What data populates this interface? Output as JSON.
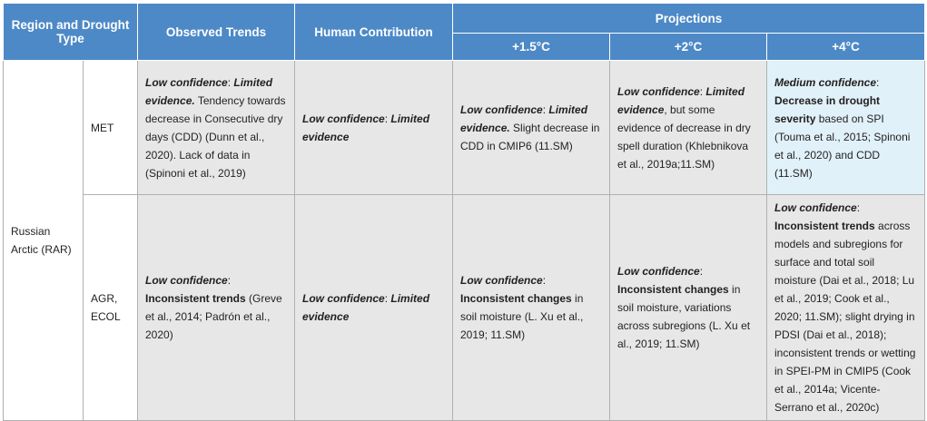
{
  "header": {
    "region": "Region and Drought Type",
    "observed": "Observed Trends",
    "human": "Human Contribution",
    "projections": "Projections",
    "levels": [
      "+1.5°C",
      "+2°C",
      "+4°C"
    ]
  },
  "region": "Russian Arctic (RAR)",
  "rows": [
    {
      "type": "MET",
      "cells": [
        [
          {
            "t": "Low confidence",
            "f": "bi"
          },
          {
            "t": ": ",
            "f": "n"
          },
          {
            "t": "Limited evidence.",
            "f": "bi"
          },
          {
            "t": " Tendency towards decrease in Consecutive dry days (CDD) (Dunn et al., 2020). Lack of data in (Spinoni et al., 2019)",
            "f": "n"
          }
        ],
        [
          {
            "t": "Low confidence",
            "f": "bi"
          },
          {
            "t": ": ",
            "f": "n"
          },
          {
            "t": "Limited evidence",
            "f": "bi"
          }
        ],
        [
          {
            "t": "Low confidence",
            "f": "bi"
          },
          {
            "t": ": ",
            "f": "n"
          },
          {
            "t": "Limited evidence.",
            "f": "bi"
          },
          {
            "t": " Slight decrease in CDD in CMIP6 (11.SM)",
            "f": "n"
          }
        ],
        [
          {
            "t": "Low confidence",
            "f": "bi"
          },
          {
            "t": ": ",
            "f": "n"
          },
          {
            "t": "Limited evidence",
            "f": "bi"
          },
          {
            "t": ", but some evidence of decrease in dry spell duration (Khlebnikova et al., 2019a;11.SM)",
            "f": "n"
          }
        ],
        [
          {
            "t": "Medium confidence",
            "f": "bi"
          },
          {
            "t": ": ",
            "f": "n"
          },
          {
            "t": "Decrease in drought severity",
            "f": "b"
          },
          {
            "t": " based on SPI (Touma et al., 2015; Spinoni et al., 2020) and CDD (11.SM)",
            "f": "n"
          }
        ]
      ]
    },
    {
      "type": "AGR, ECOL",
      "cells": [
        [
          {
            "t": "Low confidence",
            "f": "bi"
          },
          {
            "t": ": ",
            "f": "n"
          },
          {
            "t": "Inconsistent trends",
            "f": "b"
          },
          {
            "t": " (Greve et al., 2014; Padrón et al., 2020)",
            "f": "n"
          }
        ],
        [
          {
            "t": "Low confidence",
            "f": "bi"
          },
          {
            "t": ": ",
            "f": "n"
          },
          {
            "t": "Limited evidence",
            "f": "bi"
          }
        ],
        [
          {
            "t": "Low confidence",
            "f": "bi"
          },
          {
            "t": ": ",
            "f": "n"
          },
          {
            "t": "Inconsistent changes",
            "f": "b"
          },
          {
            "t": " in soil moisture (L. Xu et al., 2019; 11.SM)",
            "f": "n"
          }
        ],
        [
          {
            "t": "Low confidence",
            "f": "bi"
          },
          {
            "t": ": ",
            "f": "n"
          },
          {
            "t": "Inconsistent changes",
            "f": "b"
          },
          {
            "t": " in soil moisture, variations across subregions (L. Xu et al., 2019; 11.SM)",
            "f": "n"
          }
        ],
        [
          {
            "t": "Low confidence",
            "f": "bi"
          },
          {
            "t": ": ",
            "f": "n"
          },
          {
            "t": "Inconsistent trends",
            "f": "b"
          },
          {
            "t": " across models and subregions for surface and total soil moisture (Dai et al., 2018; Lu et al., 2019; Cook et al., 2020; 11.SM); slight drying in PDSI (Dai et al., 2018); inconsistent trends or wetting in SPEI-PM in CMIP5 (Cook et al., 2014a; Vicente-Serrano et al., 2020c)",
            "f": "n"
          }
        ]
      ]
    }
  ]
}
